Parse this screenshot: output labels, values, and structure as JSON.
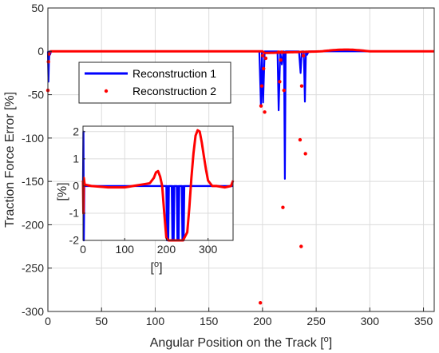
{
  "chart_data": [
    {
      "type": "line",
      "xlabel": "Angular Position on the Track [",
      "xlabel_sup": "o",
      "xlabel_end": "]",
      "ylabel": "Traction Force Error [%]",
      "xlim": [
        0,
        360
      ],
      "ylim": [
        -300,
        50
      ],
      "xticks": [
        0,
        50,
        100,
        150,
        200,
        250,
        300,
        350
      ],
      "yticks": [
        50,
        0,
        -50,
        -100,
        -150,
        -200,
        -250,
        -300
      ],
      "grid": true,
      "legend_position": "upper-left",
      "series": [
        {
          "name": "Reconstruction 1",
          "style": "line",
          "color": "#0000ff",
          "x": [
            0,
            0.5,
            1,
            1.5,
            2,
            3,
            5,
            10,
            50,
            100,
            150,
            190,
            197,
            198.5,
            199.5,
            200.5,
            202,
            210,
            214,
            215,
            216.5,
            218,
            219.5,
            220,
            220.8,
            221.6,
            223,
            234,
            235.5,
            236.5,
            238.5,
            239.5,
            240.5,
            241.5,
            243,
            260,
            300,
            360
          ],
          "y": [
            0,
            -35,
            -12,
            0,
            -4,
            0,
            0,
            0,
            0,
            0,
            0,
            0,
            0,
            -63,
            0,
            -59,
            0,
            0,
            0,
            -68,
            0,
            -15,
            0,
            0,
            -147,
            0,
            0,
            0,
            -25,
            0,
            0,
            -58,
            0,
            -4,
            0,
            0,
            0,
            0
          ]
        },
        {
          "name": "Reconstruction 2",
          "style": "markers",
          "color": "#ff0000",
          "x": [
            0,
            0.5,
            1,
            198,
            198.6,
            199.3,
            200.2,
            201,
            202,
            203,
            215,
            216,
            217,
            218,
            219,
            220,
            235,
            236,
            236.5,
            238,
            240
          ],
          "y": [
            -45,
            -12,
            -3,
            -290,
            -63,
            -40,
            -5,
            -20,
            -70,
            -8,
            -1,
            -35,
            -10,
            -1,
            -180,
            -45,
            -102,
            -225,
            -40,
            -5,
            -118
          ]
        }
      ]
    },
    {
      "type": "line",
      "inset": true,
      "xlabel": "[",
      "xlabel_sup": "o",
      "xlabel_end": "]",
      "ylabel": "[%]",
      "xlim": [
        0,
        360
      ],
      "ylim": [
        -2,
        2.2
      ],
      "xticks": [
        0,
        100,
        200,
        300
      ],
      "yticks": [
        2,
        1,
        0,
        -1,
        -2
      ],
      "grid": true,
      "series": [
        {
          "name": "Reconstruction 1",
          "color": "#0000ff",
          "x": [
            0,
            1,
            2,
            3,
            5,
            100,
            150,
            195,
            200,
            201.5,
            203,
            204.5,
            206,
            213,
            214.5,
            216,
            217.5,
            219,
            225,
            226.5,
            228,
            229.5,
            231,
            237,
            238.5,
            240,
            241.5,
            243,
            250,
            300,
            360
          ],
          "y": [
            0,
            2,
            -2,
            0,
            0,
            0,
            0,
            0,
            0,
            -2,
            0,
            -2,
            0,
            0,
            -2,
            0,
            -2,
            0,
            0,
            -2,
            0,
            -2,
            0,
            0,
            -2,
            0,
            -2,
            0,
            0,
            0,
            0
          ]
        },
        {
          "name": "Reconstruction 2",
          "color": "#ff0000",
          "x": [
            0,
            1,
            2,
            4,
            20,
            60,
            100,
            120,
            140,
            160,
            170,
            175,
            180,
            185,
            190,
            195,
            200,
            205,
            210,
            220,
            230,
            240,
            250,
            255,
            260,
            265,
            270,
            275,
            280,
            285,
            290,
            295,
            300,
            310,
            320,
            340,
            355,
            360
          ],
          "y": [
            0.2,
            -1,
            0.3,
            0.05,
            0,
            -0.05,
            -0.05,
            0,
            0.05,
            0.1,
            0.3,
            0.5,
            0.55,
            0.35,
            0,
            -1,
            -1.9,
            -2,
            -2,
            -2,
            -2,
            -2,
            -1.7,
            -0.8,
            0.3,
            1.2,
            1.85,
            2.05,
            2,
            1.6,
            1.1,
            0.6,
            0.2,
            0,
            0,
            -0.05,
            0,
            0.2
          ]
        }
      ]
    }
  ]
}
